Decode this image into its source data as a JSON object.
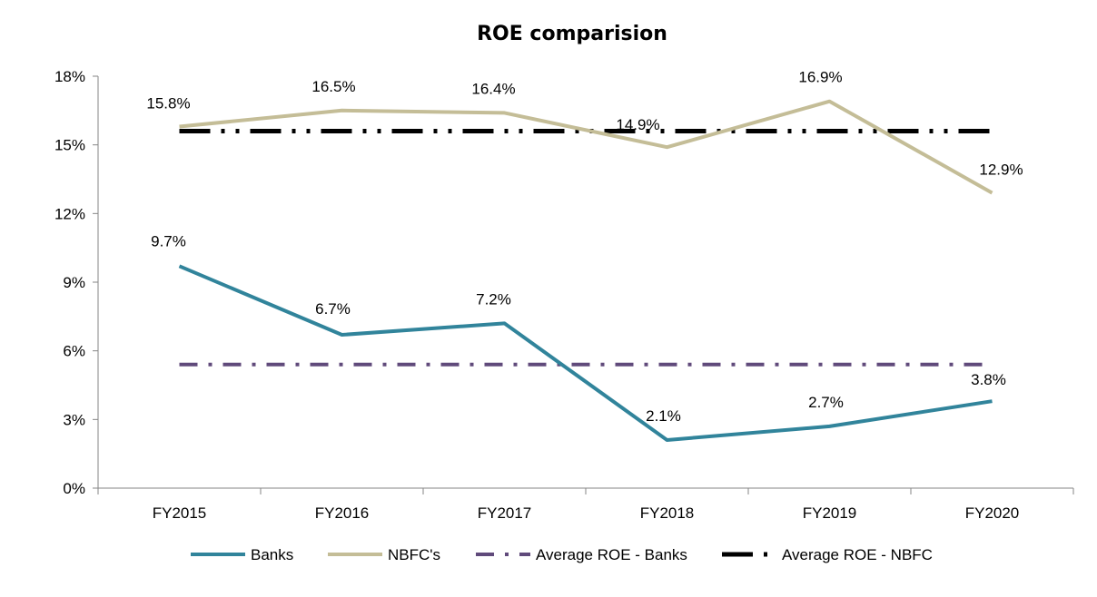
{
  "chart_data": {
    "type": "line",
    "title": "ROE comparision",
    "xlabel": "",
    "ylabel": "",
    "categories": [
      "FY2015",
      "FY2016",
      "FY2017",
      "FY2018",
      "FY2019",
      "FY2020"
    ],
    "ylim": [
      0,
      18
    ],
    "yticks": [
      0,
      3,
      6,
      9,
      12,
      15,
      18
    ],
    "ytick_labels": [
      "0%",
      "3%",
      "6%",
      "9%",
      "12%",
      "15%",
      "18%"
    ],
    "grid": false,
    "legend_position": "bottom",
    "series": [
      {
        "name": "Banks",
        "values": [
          9.7,
          6.7,
          7.2,
          2.1,
          2.7,
          3.8
        ],
        "labels": [
          "9.7%",
          "6.7%",
          "7.2%",
          "2.1%",
          "2.7%",
          "3.8%"
        ],
        "color": "#31849B",
        "style": "solid"
      },
      {
        "name": "NBFC's",
        "values": [
          15.8,
          16.5,
          16.4,
          14.9,
          16.9,
          12.9
        ],
        "labels": [
          "15.8%",
          "16.5%",
          "16.4%",
          "14.9%",
          "16.9%",
          "12.9%"
        ],
        "color": "#C4BD97",
        "style": "solid"
      },
      {
        "name": "Average ROE - Banks",
        "values": [
          5.4,
          5.4,
          5.4,
          5.4,
          5.4,
          5.4
        ],
        "color": "#604A7B",
        "style": "dash-dot"
      },
      {
        "name": "Average ROE - NBFC",
        "values": [
          15.6,
          15.6,
          15.6,
          15.6,
          15.6,
          15.6
        ],
        "color": "#000000",
        "style": "long-dash-dot-dot"
      }
    ]
  }
}
